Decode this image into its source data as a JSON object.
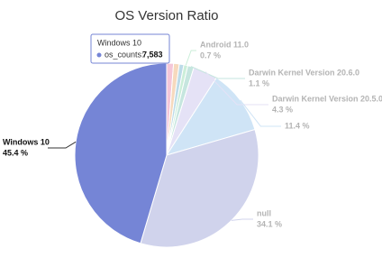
{
  "chart_data": {
    "type": "pie",
    "title": "OS Version Ratio",
    "categories": [
      null,
      null,
      null,
      "Android 11.0",
      "Darwin Kernel Version 20.6.0",
      "Darwin Kernel Version 20.5.0",
      null,
      "null",
      "Windows 10"
    ],
    "values": [
      1.2,
      1.0,
      0.8,
      0.7,
      1.1,
      4.3,
      11.4,
      34.1,
      45.4
    ],
    "value_labels": [
      null,
      null,
      null,
      "0.7 %",
      "1.1 %",
      "4.3 %",
      "11.4 %",
      "34.1 %",
      "45.4 %"
    ],
    "colors": [
      "#f4c6d8",
      "#f6d9bd",
      "#bcdbe8",
      "#cbeed9",
      "#c6e6df",
      "#e5e2f6",
      "#cfe4f6",
      "#d0d3ec",
      "#7585d6"
    ],
    "tooltip": {
      "title": "Windows 10",
      "name": "os_counts:",
      "value": "7,583"
    }
  }
}
